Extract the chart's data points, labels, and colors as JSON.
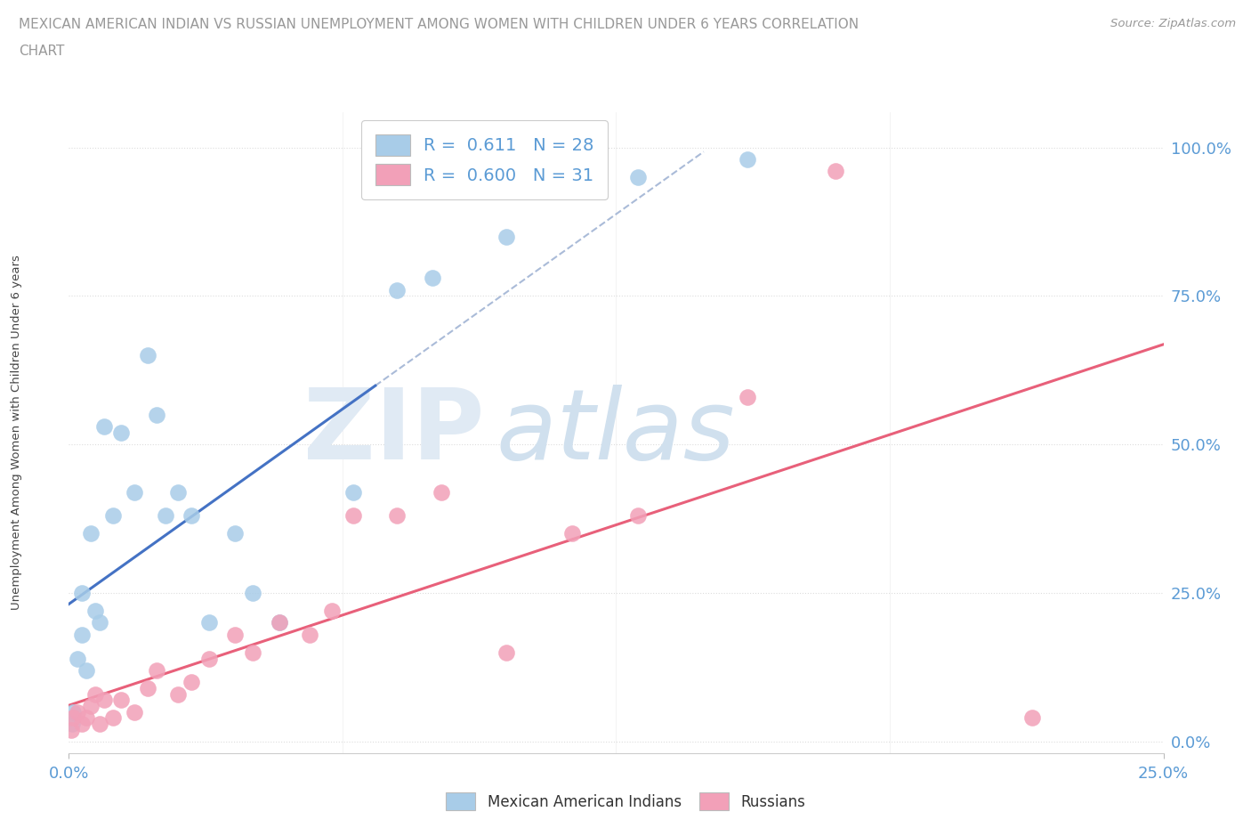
{
  "title_line1": "MEXICAN AMERICAN INDIAN VS RUSSIAN UNEMPLOYMENT AMONG WOMEN WITH CHILDREN UNDER 6 YEARS CORRELATION",
  "title_line2": "CHART",
  "source": "Source: ZipAtlas.com",
  "ylabel": "Unemployment Among Women with Children Under 6 years",
  "color_blue": "#A8CCE8",
  "color_pink": "#F2A0B8",
  "line_color_blue": "#4472C4",
  "line_color_pink": "#E8607A",
  "line_color_dashed": "#AABBD8",
  "background": "#ffffff",
  "xlim": [
    0.0,
    0.25
  ],
  "ylim": [
    -0.02,
    1.06
  ],
  "x_ticks": [
    0.0,
    0.25
  ],
  "x_tick_labels": [
    "0.0%",
    "25.0%"
  ],
  "y_ticks": [
    0.0,
    0.25,
    0.5,
    0.75,
    1.0
  ],
  "y_tick_labels": [
    "0.0%",
    "25.0%",
    "50.0%",
    "75.0%",
    "100.0%"
  ],
  "legend1_label": "R =  0.611   N = 28",
  "legend2_label": "R =  0.600   N = 31",
  "bottom_legend1": "Mexican American Indians",
  "bottom_legend2": "Russians",
  "blue_x": [
    0.0008,
    0.001,
    0.002,
    0.003,
    0.003,
    0.004,
    0.005,
    0.006,
    0.007,
    0.008,
    0.01,
    0.012,
    0.015,
    0.018,
    0.02,
    0.022,
    0.025,
    0.028,
    0.032,
    0.038,
    0.042,
    0.048,
    0.065,
    0.075,
    0.083,
    0.1,
    0.13,
    0.155
  ],
  "blue_y": [
    0.03,
    0.05,
    0.14,
    0.18,
    0.25,
    0.12,
    0.35,
    0.22,
    0.2,
    0.53,
    0.38,
    0.52,
    0.42,
    0.65,
    0.55,
    0.38,
    0.42,
    0.38,
    0.2,
    0.35,
    0.25,
    0.2,
    0.42,
    0.76,
    0.78,
    0.85,
    0.95,
    0.98
  ],
  "pink_x": [
    0.0005,
    0.001,
    0.002,
    0.003,
    0.004,
    0.005,
    0.006,
    0.007,
    0.008,
    0.01,
    0.012,
    0.015,
    0.018,
    0.02,
    0.025,
    0.028,
    0.032,
    0.038,
    0.042,
    0.048,
    0.055,
    0.06,
    0.065,
    0.075,
    0.085,
    0.1,
    0.115,
    0.13,
    0.155,
    0.175,
    0.22
  ],
  "pink_y": [
    0.02,
    0.04,
    0.05,
    0.03,
    0.04,
    0.06,
    0.08,
    0.03,
    0.07,
    0.04,
    0.07,
    0.05,
    0.09,
    0.12,
    0.08,
    0.1,
    0.14,
    0.18,
    0.15,
    0.2,
    0.18,
    0.22,
    0.38,
    0.38,
    0.42,
    0.15,
    0.35,
    0.38,
    0.58,
    0.96,
    0.04
  ],
  "marker_size": 180,
  "grid_color": "#DDDDDD",
  "tick_color": "#5B9BD5",
  "title_color": "#999999",
  "source_color": "#999999",
  "ylabel_color": "#444444"
}
